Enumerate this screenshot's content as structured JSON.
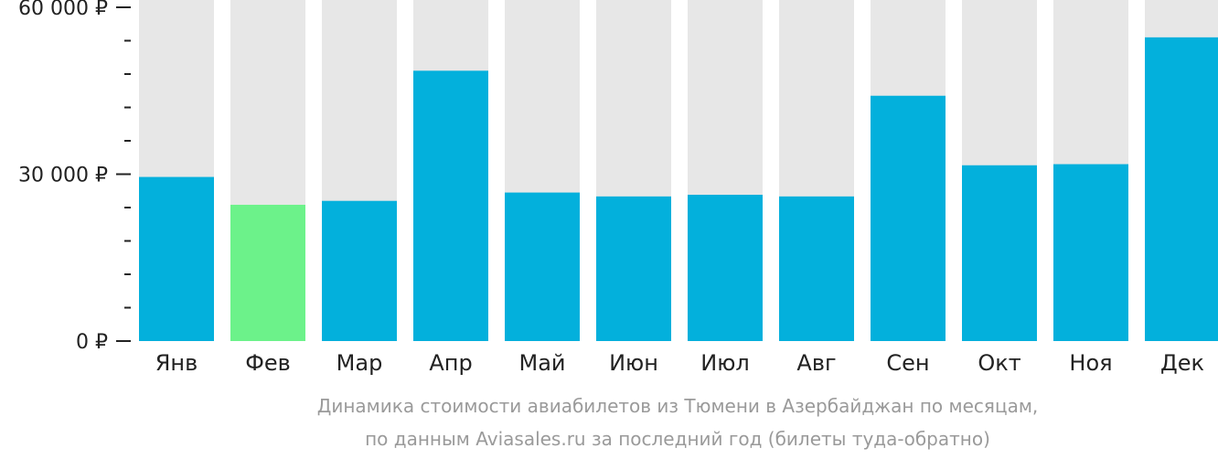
{
  "chart_data": {
    "type": "bar",
    "categories": [
      "Янв",
      "Фев",
      "Мар",
      "Апр",
      "Май",
      "Июн",
      "Июл",
      "Авг",
      "Сен",
      "Окт",
      "Ноя",
      "Дек"
    ],
    "values": [
      29500,
      24500,
      25200,
      48600,
      26700,
      26000,
      26300,
      26000,
      44100,
      31600,
      31800,
      54600
    ],
    "highlight_index": 1,
    "ylim": [
      0,
      60000
    ],
    "y_ticks": [
      {
        "value": 60000,
        "label": "60 000 ₽"
      },
      {
        "value": 30000,
        "label": "30 000 ₽"
      },
      {
        "value": 0,
        "label": "0 ₽"
      }
    ],
    "minor_tick_step": 6000,
    "grid": false,
    "colors": {
      "bar": "#03b0dc",
      "highlight": "#6cf28a",
      "background_bar": "#e7e7e7",
      "axis": "#222222"
    },
    "caption_line1": "Динамика стоимости авиабилетов из Тюмени в Азербайджан по месяцам,",
    "caption_line2": "по данным Aviasales.ru за последний год (билеты туда-обратно)"
  }
}
